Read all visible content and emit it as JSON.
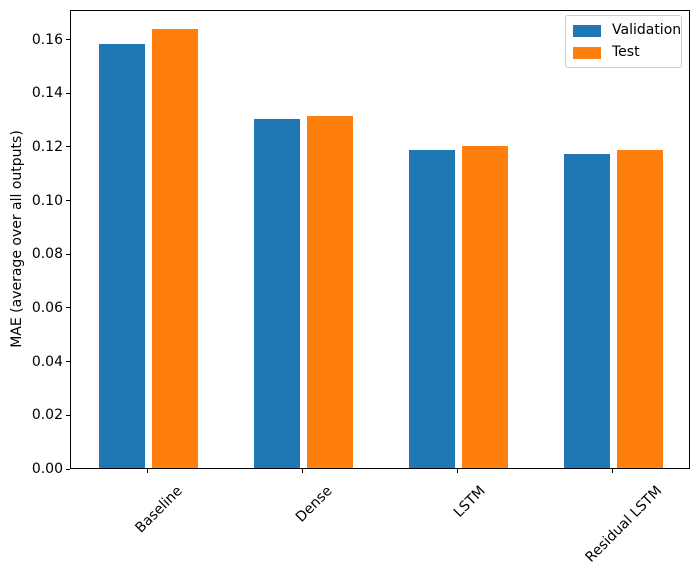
{
  "chart_data": {
    "type": "bar",
    "title": "",
    "xlabel": "",
    "ylabel": "MAE (average over all outputs)",
    "categories": [
      "Baseline",
      "Dense",
      "LSTM",
      "Residual LSTM"
    ],
    "series": [
      {
        "name": "Validation",
        "color": "#1f77b4",
        "values": [
          0.158,
          0.13,
          0.1185,
          0.117
        ]
      },
      {
        "name": "Test",
        "color": "#ff7f0e",
        "values": [
          0.1635,
          0.131,
          0.12,
          0.1185
        ]
      }
    ],
    "ylim": [
      0,
      0.171
    ],
    "yticks": [
      0.0,
      0.02,
      0.04,
      0.06,
      0.08,
      0.1,
      0.12,
      0.14,
      0.16
    ],
    "ytick_labels": [
      "0.00",
      "0.02",
      "0.04",
      "0.06",
      "0.08",
      "0.10",
      "0.12",
      "0.14",
      "0.16"
    ],
    "xtick_rotation": 45,
    "grid": false,
    "legend_position": "upper right",
    "bar_width_frac": 0.3,
    "bar_offset_frac": 0.17,
    "axis_color": "#000000",
    "background_color": "#ffffff"
  }
}
